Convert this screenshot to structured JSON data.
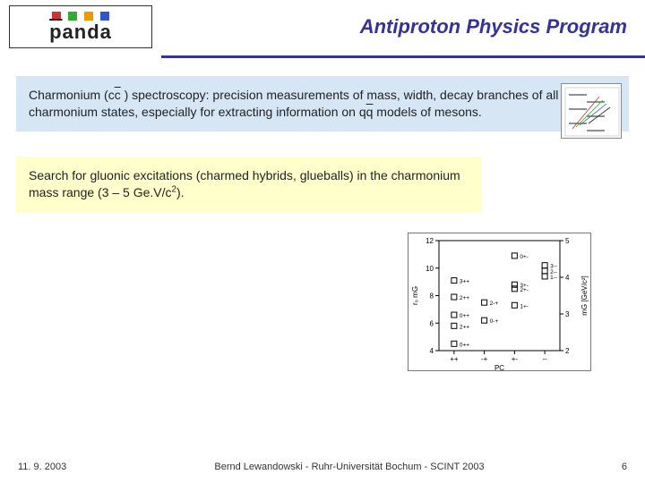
{
  "header": {
    "logo_text_html": "<span class='bar'>p</span>anda",
    "logo_dots": [
      "#cc3333",
      "#33aa33",
      "#ee9900",
      "#3355cc"
    ],
    "title": "Antiproton Physics Program",
    "title_color": "#333399"
  },
  "block1": {
    "background": "#d6e6f5",
    "text_html": "Charmonium (c<span class='overline'>c</span> ) spectroscopy: precision measurements of mass, width, decay branches of all charmonium states, especially for extracting information on q<span class='overline'>q</span> models of mesons.",
    "mini_chart": {
      "border_color": "#888888",
      "bg": "#ffffff",
      "line_colors": [
        "#cc3333",
        "#33aa33",
        "#3355cc",
        "#222222"
      ]
    }
  },
  "block2": {
    "background": "#ffffcc",
    "text_html": "Search for gluonic excitations (charmed hybrids, glueballs) in the charmonium mass range (3 – 5 Ge.V/c<sup>2</sup>)."
  },
  "chart2": {
    "type": "scatter",
    "border_color": "#777777",
    "bg": "#ffffff",
    "ylim_left": [
      4,
      12
    ],
    "ytick_left": [
      4,
      6,
      8,
      10,
      12
    ],
    "ylabel_left": "r₀ mG",
    "ylim_right": [
      2,
      5
    ],
    "ytick_right": [
      2,
      3,
      4,
      5
    ],
    "ylabel_right": "mG [GeV/c²]",
    "x_categories": [
      "++",
      "-+",
      "+-",
      "--"
    ],
    "xlabel": "PC",
    "marker_color": "#000000",
    "marker_style": "square-open",
    "groups": [
      {
        "pc": "++",
        "points": [
          {
            "y": 4.5,
            "label": "0++"
          },
          {
            "y": 6.6,
            "label": "0++"
          },
          {
            "y": 5.8,
            "label": "2++"
          },
          {
            "y": 7.9,
            "label": "2++"
          },
          {
            "y": 9.1,
            "label": "3++"
          }
        ]
      },
      {
        "pc": "-+",
        "points": [
          {
            "y": 6.2,
            "label": "0-+"
          },
          {
            "y": 7.5,
            "label": "2-+"
          }
        ]
      },
      {
        "pc": "+-",
        "points": [
          {
            "y": 7.3,
            "label": "1+-"
          },
          {
            "y": 8.8,
            "label": "3+-"
          },
          {
            "y": 8.5,
            "label": "2+-"
          },
          {
            "y": 10.9,
            "label": "0+-"
          }
        ]
      },
      {
        "pc": "--",
        "points": [
          {
            "y": 9.4,
            "label": "1--"
          },
          {
            "y": 9.8,
            "label": "2--"
          },
          {
            "y": 10.2,
            "label": "3--"
          }
        ]
      }
    ]
  },
  "footer": {
    "date": "11. 9. 2003",
    "center": "Bernd Lewandowski - Ruhr-Universität Bochum - SCINT 2003",
    "page": "6"
  }
}
